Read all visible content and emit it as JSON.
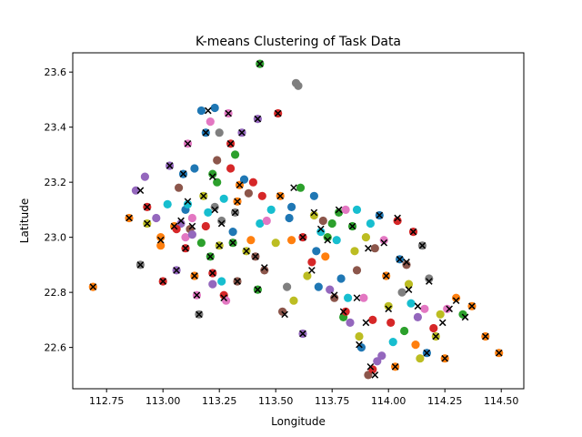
{
  "chart_data": {
    "type": "scatter",
    "title": "K-means Clustering of Task Data",
    "xlabel": "Longitude",
    "ylabel": "Latitude",
    "xlim": [
      112.6,
      114.6
    ],
    "ylim": [
      22.45,
      23.67
    ],
    "xticks": [
      "112.75",
      "113.00",
      "113.25",
      "113.50",
      "113.75",
      "114.00",
      "114.25",
      "114.50"
    ],
    "yticks": [
      "22.6",
      "22.8",
      "23.0",
      "23.2",
      "23.4",
      "23.6"
    ],
    "grid": false,
    "legend": "none",
    "palette": [
      "#1f77b4",
      "#ff7f0e",
      "#2ca02c",
      "#d62728",
      "#9467bd",
      "#8c564b",
      "#e377c2",
      "#7f7f7f",
      "#bcbd22",
      "#17becf"
    ],
    "centroid_color": "#000000",
    "centroid_marker": "x",
    "points": [
      [
        112.69,
        22.82,
        1
      ],
      [
        112.85,
        23.07,
        1
      ],
      [
        112.88,
        23.17,
        4
      ],
      [
        112.9,
        22.9,
        7
      ],
      [
        112.93,
        23.05,
        8
      ],
      [
        112.93,
        23.11,
        3
      ],
      [
        112.92,
        23.22,
        4
      ],
      [
        112.97,
        23.07,
        4
      ],
      [
        112.99,
        23.0,
        1
      ],
      [
        112.99,
        22.97,
        1
      ],
      [
        113.0,
        22.84,
        3
      ],
      [
        113.02,
        23.12,
        9
      ],
      [
        113.03,
        23.26,
        4
      ],
      [
        113.05,
        23.04,
        1
      ],
      [
        113.06,
        22.88,
        4
      ],
      [
        113.07,
        23.18,
        5
      ],
      [
        113.08,
        23.05,
        4
      ],
      [
        113.09,
        23.23,
        0
      ],
      [
        113.1,
        23.0,
        6
      ],
      [
        113.1,
        22.96,
        3
      ],
      [
        113.1,
        23.1,
        0
      ],
      [
        113.11,
        23.34,
        6
      ],
      [
        113.11,
        23.12,
        9
      ],
      [
        113.12,
        23.03,
        5
      ],
      [
        113.13,
        23.07,
        6
      ],
      [
        113.14,
        22.86,
        1
      ],
      [
        113.14,
        23.25,
        0
      ],
      [
        113.15,
        22.79,
        6
      ],
      [
        113.16,
        22.72,
        7
      ],
      [
        113.17,
        22.98,
        2
      ],
      [
        113.17,
        23.46,
        0
      ],
      [
        113.18,
        23.15,
        8
      ],
      [
        113.19,
        23.38,
        0
      ],
      [
        113.19,
        23.04,
        3
      ],
      [
        113.2,
        23.09,
        9
      ],
      [
        113.21,
        23.42,
        6
      ],
      [
        113.21,
        22.93,
        2
      ],
      [
        113.22,
        22.83,
        4
      ],
      [
        113.22,
        23.23,
        2
      ],
      [
        113.22,
        22.87,
        3
      ],
      [
        113.23,
        23.47,
        0
      ],
      [
        113.23,
        23.11,
        7
      ],
      [
        113.24,
        23.28,
        5
      ],
      [
        113.24,
        23.2,
        2
      ],
      [
        113.25,
        22.97,
        8
      ],
      [
        113.25,
        23.38,
        7
      ],
      [
        113.26,
        23.06,
        7
      ],
      [
        113.26,
        22.84,
        9
      ],
      [
        113.27,
        22.79,
        3
      ],
      [
        113.27,
        23.14,
        9
      ],
      [
        113.28,
        22.77,
        6
      ],
      [
        113.29,
        23.45,
        6
      ],
      [
        113.3,
        23.34,
        3
      ],
      [
        113.3,
        23.25,
        3
      ],
      [
        113.31,
        23.02,
        0
      ],
      [
        113.31,
        22.98,
        2
      ],
      [
        113.32,
        23.09,
        7
      ],
      [
        113.32,
        23.3,
        2
      ],
      [
        113.33,
        23.13,
        1
      ],
      [
        113.33,
        22.84,
        5
      ],
      [
        113.34,
        23.19,
        1
      ],
      [
        113.35,
        23.38,
        4
      ],
      [
        113.36,
        23.21,
        0
      ],
      [
        113.37,
        22.95,
        8
      ],
      [
        113.38,
        23.16,
        5
      ],
      [
        113.39,
        22.99,
        1
      ],
      [
        113.4,
        23.2,
        3
      ],
      [
        113.41,
        22.93,
        5
      ],
      [
        113.42,
        22.81,
        2
      ],
      [
        113.42,
        23.43,
        4
      ],
      [
        113.43,
        23.63,
        2
      ],
      [
        113.43,
        23.05,
        9
      ],
      [
        113.44,
        23.15,
        3
      ],
      [
        113.45,
        22.88,
        5
      ],
      [
        113.46,
        23.06,
        6
      ],
      [
        113.48,
        23.1,
        9
      ],
      [
        113.5,
        22.98,
        8
      ],
      [
        113.51,
        23.45,
        3
      ],
      [
        113.52,
        23.15,
        1
      ],
      [
        113.53,
        22.73,
        5
      ],
      [
        113.55,
        22.82,
        7
      ],
      [
        113.56,
        23.07,
        0
      ],
      [
        113.57,
        23.11,
        0
      ],
      [
        113.57,
        22.99,
        1
      ],
      [
        113.58,
        22.77,
        8
      ],
      [
        113.59,
        23.56,
        7
      ],
      [
        113.6,
        23.55,
        7
      ],
      [
        113.61,
        23.18,
        2
      ],
      [
        113.62,
        22.65,
        4
      ],
      [
        113.62,
        23.0,
        3
      ],
      [
        113.64,
        22.86,
        8
      ],
      [
        113.66,
        22.91,
        3
      ],
      [
        113.67,
        23.08,
        8
      ],
      [
        113.67,
        23.15,
        0
      ],
      [
        113.68,
        22.95,
        0
      ],
      [
        113.69,
        22.82,
        0
      ],
      [
        113.7,
        23.02,
        9
      ],
      [
        113.71,
        23.06,
        5
      ],
      [
        113.72,
        22.93,
        1
      ],
      [
        113.73,
        23.0,
        2
      ],
      [
        113.74,
        22.81,
        4
      ],
      [
        113.75,
        23.05,
        2
      ],
      [
        113.76,
        22.78,
        5
      ],
      [
        113.77,
        22.99,
        9
      ],
      [
        113.78,
        23.09,
        2
      ],
      [
        113.79,
        22.85,
        0
      ],
      [
        113.8,
        22.71,
        2
      ],
      [
        113.81,
        22.73,
        3
      ],
      [
        113.81,
        23.1,
        6
      ],
      [
        113.82,
        22.78,
        9
      ],
      [
        113.83,
        22.69,
        4
      ],
      [
        113.84,
        23.04,
        2
      ],
      [
        113.85,
        22.95,
        8
      ],
      [
        113.86,
        23.1,
        9
      ],
      [
        113.86,
        22.88,
        5
      ],
      [
        113.87,
        22.64,
        8
      ],
      [
        113.88,
        22.6,
        0
      ],
      [
        113.89,
        22.78,
        6
      ],
      [
        113.9,
        23.0,
        8
      ],
      [
        113.91,
        22.5,
        5
      ],
      [
        113.92,
        23.05,
        9
      ],
      [
        113.93,
        22.7,
        3
      ],
      [
        113.93,
        22.52,
        3
      ],
      [
        113.94,
        22.96,
        5
      ],
      [
        113.95,
        22.55,
        4
      ],
      [
        113.96,
        23.08,
        0
      ],
      [
        113.97,
        22.57,
        4
      ],
      [
        113.98,
        22.99,
        6
      ],
      [
        113.99,
        22.86,
        1
      ],
      [
        114.0,
        22.75,
        8
      ],
      [
        114.01,
        22.69,
        3
      ],
      [
        114.02,
        22.62,
        9
      ],
      [
        114.03,
        22.53,
        1
      ],
      [
        114.04,
        23.06,
        3
      ],
      [
        114.05,
        22.92,
        0
      ],
      [
        114.06,
        22.8,
        7
      ],
      [
        114.07,
        22.66,
        2
      ],
      [
        114.08,
        22.9,
        5
      ],
      [
        114.09,
        22.83,
        8
      ],
      [
        114.1,
        22.76,
        9
      ],
      [
        114.11,
        23.02,
        3
      ],
      [
        114.12,
        22.61,
        1
      ],
      [
        114.13,
        22.71,
        4
      ],
      [
        114.14,
        22.56,
        8
      ],
      [
        114.15,
        22.97,
        7
      ],
      [
        114.16,
        22.74,
        6
      ],
      [
        114.17,
        22.58,
        0
      ],
      [
        114.18,
        22.85,
        7
      ],
      [
        114.2,
        22.67,
        3
      ],
      [
        114.21,
        22.64,
        8
      ],
      [
        114.23,
        22.72,
        8
      ],
      [
        114.25,
        22.56,
        1
      ],
      [
        114.26,
        22.74,
        6
      ],
      [
        114.3,
        22.78,
        1
      ],
      [
        114.33,
        22.72,
        2
      ],
      [
        114.37,
        22.75,
        1
      ],
      [
        114.43,
        22.64,
        1
      ],
      [
        114.49,
        22.58,
        1
      ],
      [
        113.13,
        23.01,
        4
      ],
      [
        113.06,
        23.03,
        3
      ]
    ],
    "centroids": [
      [
        112.69,
        22.82
      ],
      [
        112.85,
        23.07
      ],
      [
        112.9,
        22.9
      ],
      [
        112.9,
        23.17
      ],
      [
        112.93,
        23.05
      ],
      [
        112.93,
        23.11
      ],
      [
        112.99,
        22.99
      ],
      [
        113.0,
        22.84
      ],
      [
        113.03,
        23.26
      ],
      [
        113.05,
        23.04
      ],
      [
        113.06,
        22.88
      ],
      [
        113.08,
        23.06
      ],
      [
        113.09,
        23.23
      ],
      [
        113.1,
        22.96
      ],
      [
        113.11,
        23.34
      ],
      [
        113.11,
        23.13
      ],
      [
        113.13,
        23.04
      ],
      [
        113.14,
        22.86
      ],
      [
        113.15,
        22.79
      ],
      [
        113.16,
        22.72
      ],
      [
        113.18,
        23.15
      ],
      [
        113.19,
        23.38
      ],
      [
        113.2,
        23.46
      ],
      [
        113.21,
        22.93
      ],
      [
        113.22,
        22.87
      ],
      [
        113.22,
        23.22
      ],
      [
        113.23,
        23.1
      ],
      [
        113.25,
        22.97
      ],
      [
        113.26,
        23.05
      ],
      [
        113.27,
        22.78
      ],
      [
        113.29,
        23.45
      ],
      [
        113.3,
        23.34
      ],
      [
        113.31,
        22.98
      ],
      [
        113.32,
        23.09
      ],
      [
        113.33,
        23.13
      ],
      [
        113.33,
        22.84
      ],
      [
        113.34,
        23.19
      ],
      [
        113.35,
        23.38
      ],
      [
        113.37,
        22.95
      ],
      [
        113.41,
        22.93
      ],
      [
        113.42,
        23.43
      ],
      [
        113.43,
        23.63
      ],
      [
        113.42,
        22.81
      ],
      [
        113.45,
        22.89
      ],
      [
        113.51,
        23.45
      ],
      [
        113.52,
        23.15
      ],
      [
        113.54,
        22.72
      ],
      [
        113.58,
        23.18
      ],
      [
        113.62,
        22.65
      ],
      [
        113.62,
        23.0
      ],
      [
        113.66,
        22.88
      ],
      [
        113.67,
        23.09
      ],
      [
        113.7,
        23.03
      ],
      [
        113.73,
        22.99
      ],
      [
        113.76,
        22.79
      ],
      [
        113.78,
        23.1
      ],
      [
        113.8,
        22.73
      ],
      [
        113.84,
        23.04
      ],
      [
        113.86,
        22.78
      ],
      [
        113.87,
        22.61
      ],
      [
        113.9,
        22.69
      ],
      [
        113.91,
        22.96
      ],
      [
        113.92,
        22.53
      ],
      [
        113.94,
        22.5
      ],
      [
        113.96,
        23.08
      ],
      [
        113.98,
        22.98
      ],
      [
        113.99,
        22.86
      ],
      [
        114.0,
        22.74
      ],
      [
        114.03,
        22.53
      ],
      [
        114.04,
        23.07
      ],
      [
        114.05,
        22.92
      ],
      [
        114.08,
        22.91
      ],
      [
        114.09,
        22.81
      ],
      [
        114.11,
        23.02
      ],
      [
        114.13,
        22.75
      ],
      [
        114.15,
        22.97
      ],
      [
        114.17,
        22.58
      ],
      [
        114.18,
        22.84
      ],
      [
        114.21,
        22.64
      ],
      [
        114.24,
        22.69
      ],
      [
        114.25,
        22.56
      ],
      [
        114.27,
        22.74
      ],
      [
        114.3,
        22.77
      ],
      [
        114.34,
        22.71
      ],
      [
        114.37,
        22.75
      ],
      [
        114.43,
        22.64
      ],
      [
        114.49,
        22.58
      ]
    ]
  }
}
